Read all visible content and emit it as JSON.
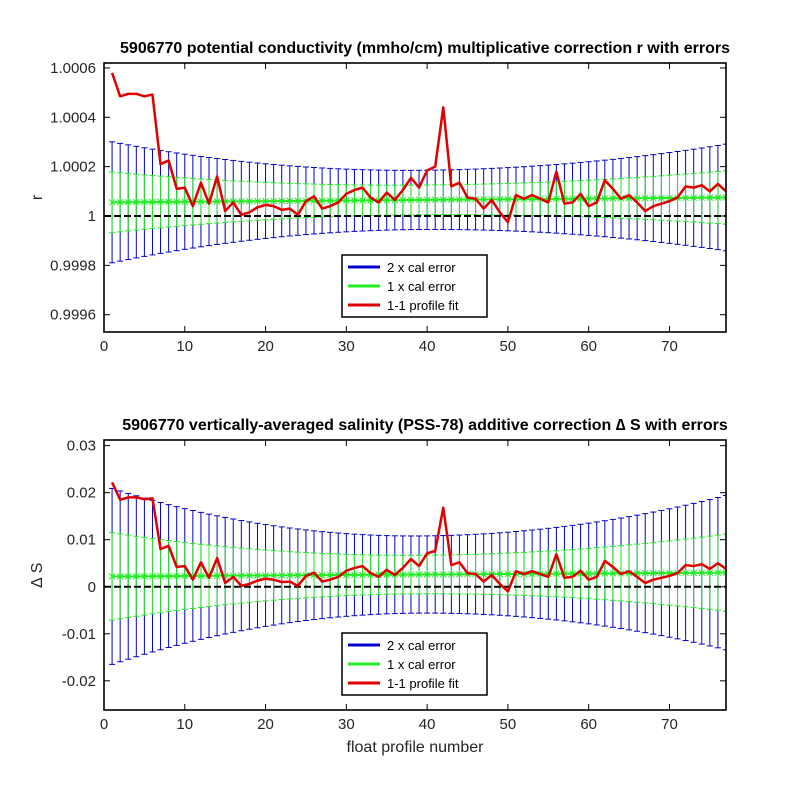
{
  "chart_data": [
    {
      "type": "line",
      "title": "5906770 potential conductivity (mmho/cm) multiplicative correction r with errors",
      "xlabel": "",
      "ylabel": "r",
      "xlim": [
        0,
        77
      ],
      "ylim": [
        0.99953,
        1.00062
      ],
      "xticks": [
        0,
        10,
        20,
        30,
        40,
        50,
        60,
        70
      ],
      "yticks": [
        0.9996,
        0.9998,
        1,
        1.0002,
        1.0004,
        1.0006
      ],
      "yticklabels": [
        "0.9996",
        "0.9998",
        "1",
        "1.0002",
        "1.0004",
        "1.0006"
      ],
      "grid": false,
      "legend_position": "bottom-center",
      "legend": [
        "2 x cal error",
        "1 x cal error",
        "1-1 profile fit"
      ],
      "reference_line": 1,
      "mapped_fit": {
        "start": 1.0000555,
        "end": 1.000075
      },
      "err2": {
        "at_ends": [
          0.000245,
          0.000216
        ],
        "at_center": 0.00012,
        "center_x": 39
      },
      "err1": {
        "at_ends": [
          0.000123,
          0.000108
        ],
        "at_center": 6e-05,
        "center_x": 39
      },
      "series": [
        {
          "name": "1-1 profile fit",
          "x": [
            1,
            2,
            3,
            4,
            5,
            6,
            7,
            8,
            9,
            10,
            11,
            12,
            13,
            14,
            15,
            16,
            17,
            18,
            19,
            20,
            21,
            22,
            23,
            24,
            25,
            26,
            27,
            28,
            29,
            30,
            31,
            32,
            33,
            34,
            35,
            36,
            37,
            38,
            39,
            40,
            41,
            42,
            43,
            44,
            45,
            46,
            47,
            48,
            49,
            50,
            51,
            52,
            53,
            54,
            55,
            56,
            57,
            58,
            59,
            60,
            61,
            62,
            63,
            64,
            65,
            66,
            67,
            68,
            69,
            70,
            71,
            72,
            73,
            74,
            75,
            76,
            77
          ],
          "values": [
            1.00058,
            1.000485,
            1.000495,
            1.000495,
            1.000485,
            1.000492,
            1.00021,
            1.000225,
            1.00011,
            1.000115,
            1.00004,
            1.000135,
            1.00005,
            1.00016,
            1.00002,
            1.000055,
            1.000005,
            1.000015,
            1.000035,
            1.000045,
            1.00004,
            1.000025,
            1.00003,
            1.000005,
            1.00006,
            1.00008,
            1.00003,
            1.00004,
            1.000055,
            1.00009,
            1.000105,
            1.000115,
            1.000075,
            1.000055,
            1.000095,
            1.000065,
            1.000105,
            1.000155,
            1.000115,
            1.000185,
            1.0002,
            1.00044,
            1.00012,
            1.000135,
            1.000075,
            1.00007,
            1.00003,
            1.000065,
            1.000015,
            0.999975,
            1.000085,
            1.00007,
            1.000085,
            1.00007,
            1.000055,
            1.00018,
            1.00005,
            1.000055,
            1.00009,
            1.00004,
            1.000055,
            1.000145,
            1.00011,
            1.00007,
            1.000085,
            1.000055,
            1.00002,
            1.00004,
            1.00005,
            1.00006,
            1.000075,
            1.00012,
            1.000115,
            1.000125,
            1.0001,
            1.00013,
            1.0001
          ]
        }
      ]
    },
    {
      "type": "line",
      "title": "5906770 vertically-averaged salinity (PSS-78) additive correction ∆ S with errors",
      "xlabel": "float profile number",
      "ylabel": "∆ S",
      "xlim": [
        0,
        77
      ],
      "ylim": [
        -0.0262,
        0.0312
      ],
      "xticks": [
        0,
        10,
        20,
        30,
        40,
        50,
        60,
        70
      ],
      "yticks": [
        -0.02,
        -0.01,
        0,
        0.01,
        0.02,
        0.03
      ],
      "yticklabels": [
        "-0.02",
        "-0.01",
        "0",
        "0.01",
        "0.02",
        "0.03"
      ],
      "grid": false,
      "legend_position": "bottom-center",
      "legend": [
        "2 x cal error",
        "1 x cal error",
        "1-1 profile fit"
      ],
      "reference_line": 0,
      "mapped_fit": {
        "start": 0.0022,
        "end": 0.003
      },
      "err2": {
        "at_ends": [
          0.0187,
          0.0164
        ],
        "at_center": 0.0082,
        "center_x": 39
      },
      "err1": {
        "at_ends": [
          0.0093,
          0.0082
        ],
        "at_center": 0.0041,
        "center_x": 39
      },
      "series": [
        {
          "name": "1-1 profile fit",
          "x": [
            1,
            2,
            3,
            4,
            5,
            6,
            7,
            8,
            9,
            10,
            11,
            12,
            13,
            14,
            15,
            16,
            17,
            18,
            19,
            20,
            21,
            22,
            23,
            24,
            25,
            26,
            27,
            28,
            29,
            30,
            31,
            32,
            33,
            34,
            35,
            36,
            37,
            38,
            39,
            40,
            41,
            42,
            43,
            44,
            45,
            46,
            47,
            48,
            49,
            50,
            51,
            52,
            53,
            54,
            55,
            56,
            57,
            58,
            59,
            60,
            61,
            62,
            63,
            64,
            65,
            66,
            67,
            68,
            69,
            70,
            71,
            72,
            73,
            74,
            75,
            76,
            77
          ],
          "values": [
            0.0222,
            0.0185,
            0.019,
            0.019,
            0.0186,
            0.0188,
            0.008,
            0.0087,
            0.0042,
            0.0044,
            0.0015,
            0.0052,
            0.0019,
            0.0061,
            0.0008,
            0.0021,
            0.0002,
            0.0006,
            0.0013,
            0.0017,
            0.0015,
            0.001,
            0.0011,
            0.0002,
            0.0023,
            0.003,
            0.0011,
            0.0015,
            0.0021,
            0.0034,
            0.004,
            0.0044,
            0.0029,
            0.0021,
            0.0036,
            0.0025,
            0.004,
            0.0059,
            0.0044,
            0.0071,
            0.0076,
            0.0168,
            0.0046,
            0.0052,
            0.0029,
            0.0027,
            0.0011,
            0.0025,
            0.0006,
            -0.001,
            0.0033,
            0.0027,
            0.0033,
            0.0027,
            0.0021,
            0.0069,
            0.0019,
            0.0021,
            0.0034,
            0.0015,
            0.0021,
            0.0055,
            0.0042,
            0.0027,
            0.0033,
            0.0021,
            0.0008,
            0.0015,
            0.0019,
            0.0023,
            0.0029,
            0.0046,
            0.0044,
            0.0048,
            0.0038,
            0.005,
            0.0038
          ]
        }
      ]
    }
  ]
}
